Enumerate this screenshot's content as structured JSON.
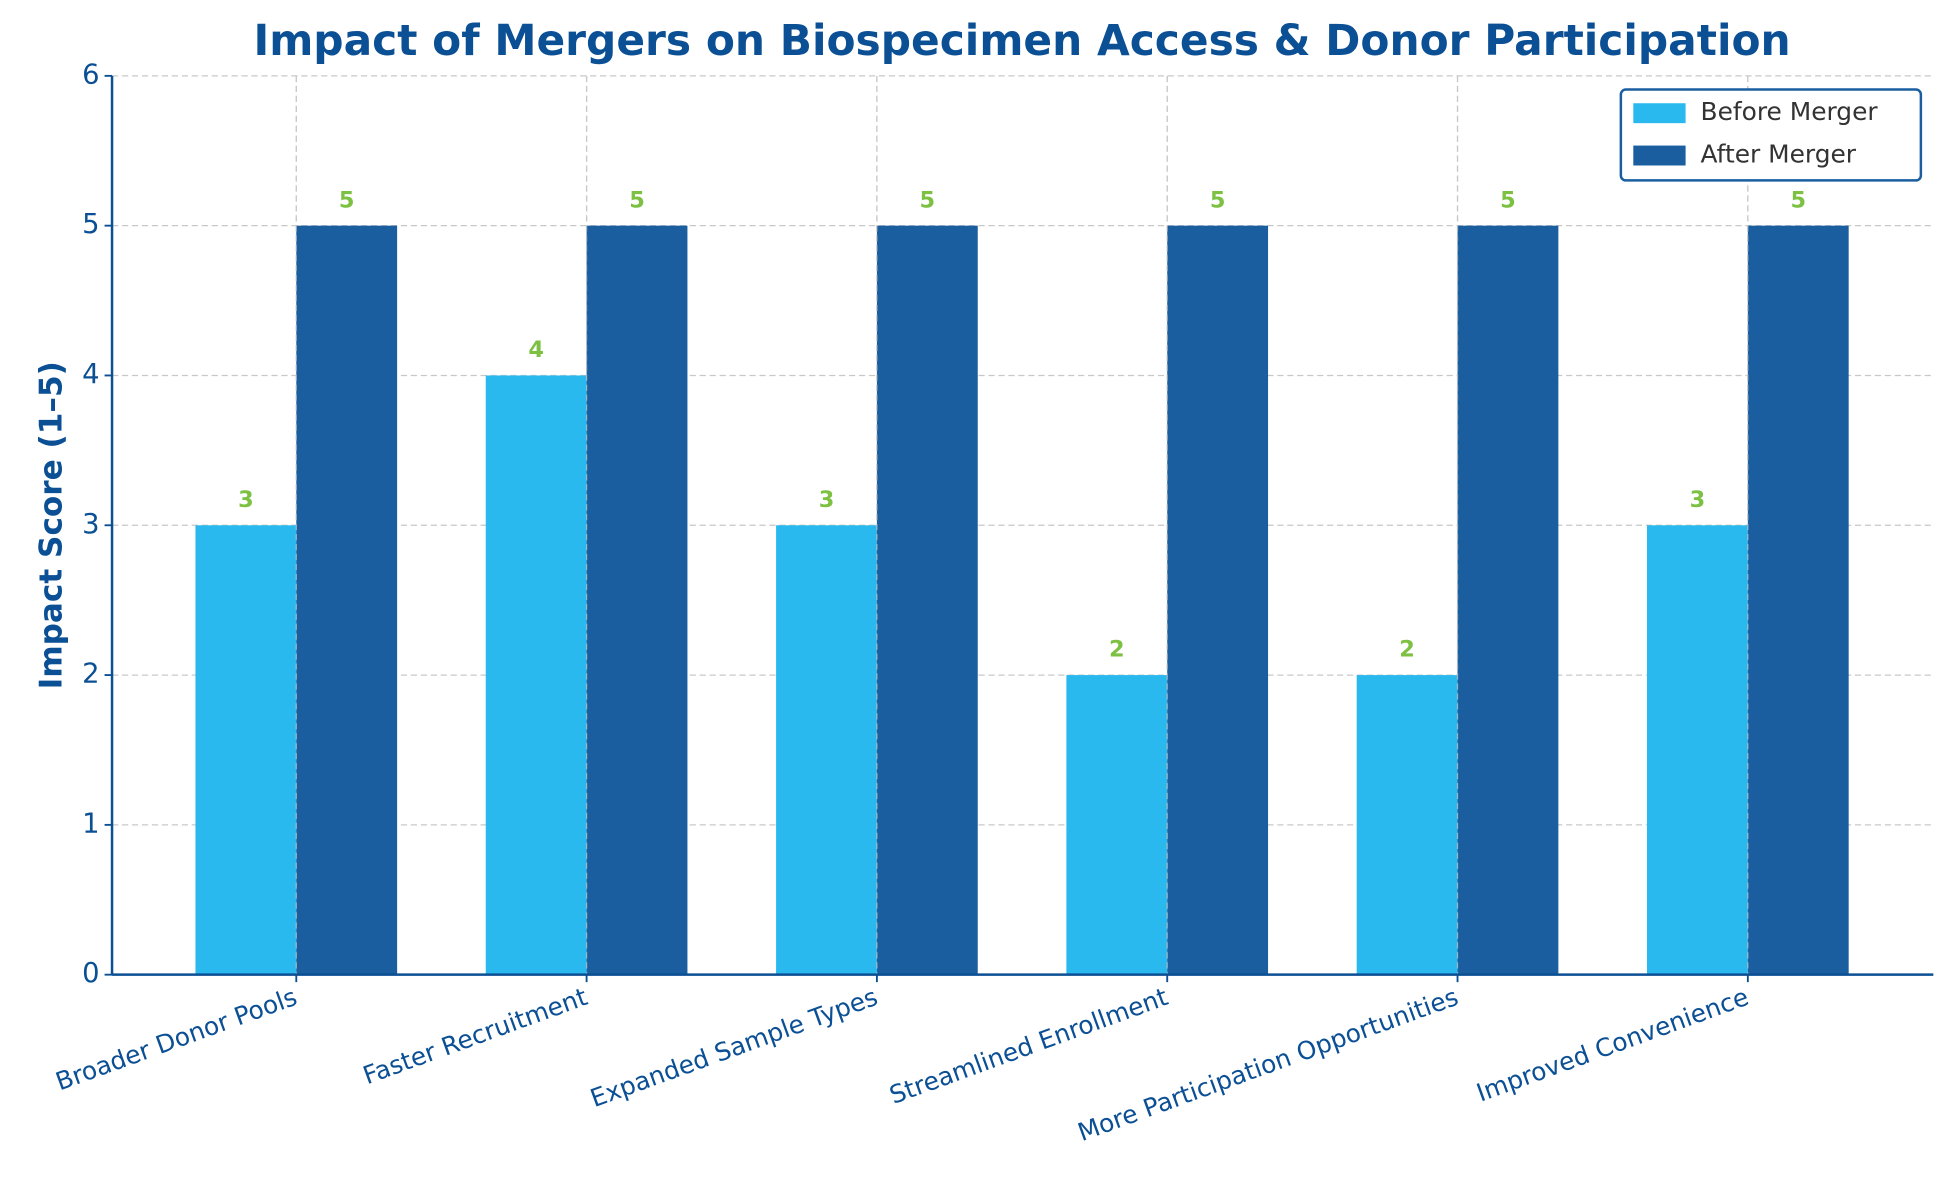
{
  "chart_data": {
    "type": "bar",
    "title": "Impact of Mergers on Biospecimen Access & Donor Participation",
    "y_label": "Impact Score (1–5)",
    "categories": [
      "Broader Donor Pools",
      "Faster Recruitment",
      "Expanded Sample Types",
      "Streamlined Enrollment",
      "More Participation Opportunities",
      "Improved Convenience"
    ],
    "series": [
      {
        "name": "Before Merger",
        "color": "#29b9ef",
        "values": [
          3,
          4,
          3,
          2,
          2,
          3
        ]
      },
      {
        "name": "After Merger",
        "color": "#1a5ea0",
        "values": [
          5,
          5,
          5,
          5,
          5,
          5
        ]
      }
    ],
    "ylim": [
      0,
      6
    ],
    "yticks": [
      0,
      1,
      2,
      3,
      4,
      5,
      6
    ],
    "grid": true,
    "legend": "upper right"
  }
}
